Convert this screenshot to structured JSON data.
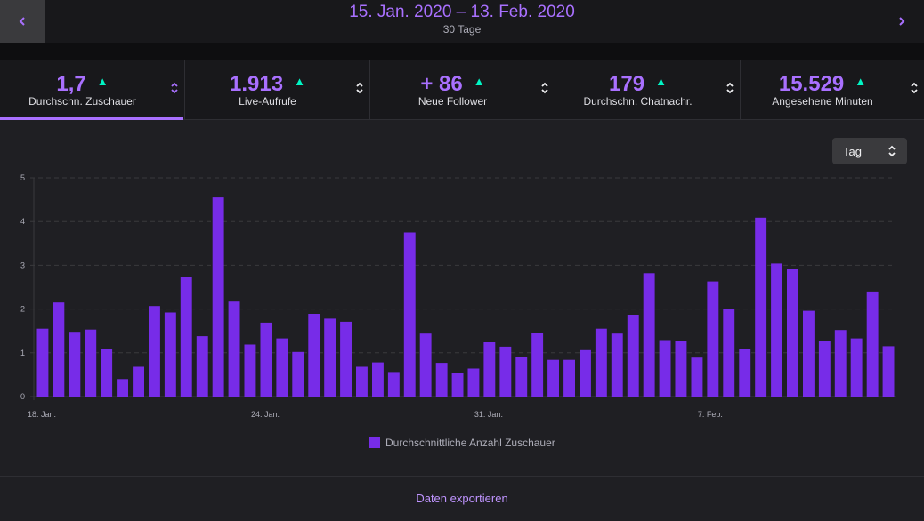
{
  "header": {
    "date_range": "15. Jan. 2020 – 13. Feb. 2020",
    "days": "30 Tage",
    "prev_icon": "chevron-left-icon",
    "next_icon": "chevron-right-icon"
  },
  "stats": [
    {
      "value": "1,7",
      "label": "Durchschn. Zuschauer",
      "trend": "up",
      "active": true
    },
    {
      "value": "1.913",
      "label": "Live-Aufrufe",
      "trend": "up",
      "active": false
    },
    {
      "value": "+ 86",
      "label": "Neue Follower",
      "trend": "up",
      "active": false
    },
    {
      "value": "179",
      "label": "Durchschn. Chatnachr.",
      "trend": "up",
      "active": false
    },
    {
      "value": "15.529",
      "label": "Angesehene Minuten",
      "trend": "up",
      "active": false
    }
  ],
  "period_select": {
    "value": "Tag"
  },
  "colors": {
    "accent": "#a970ff",
    "bar": "#772ce8",
    "trend_up": "#00f5c4"
  },
  "chart_data": {
    "type": "bar",
    "legend_position": "bottom",
    "grid": true,
    "ylim": [
      0,
      5
    ],
    "yticks": [
      "0",
      "1",
      "2",
      "3",
      "4",
      "5"
    ],
    "xtick_labels": [
      {
        "label": "18. Jan.",
        "index": 0
      },
      {
        "label": "24. Jan.",
        "index": 14
      },
      {
        "label": "31. Jan.",
        "index": 28
      },
      {
        "label": "7. Feb.",
        "index": 42
      }
    ],
    "series": [
      {
        "name": "Durchschnittliche Anzahl Zuschauer",
        "values": [
          1.55,
          2.15,
          1.48,
          1.53,
          1.08,
          0.4,
          0.68,
          2.07,
          1.92,
          2.74,
          1.38,
          4.55,
          2.17,
          1.19,
          1.69,
          1.33,
          1.02,
          1.89,
          1.78,
          1.71,
          0.68,
          0.78,
          0.56,
          3.75,
          1.44,
          0.77,
          0.54,
          0.64,
          1.24,
          1.14,
          0.91,
          1.46,
          0.84,
          0.84,
          1.06,
          1.55,
          1.44,
          1.87,
          2.82,
          1.29,
          1.27,
          0.89,
          2.63,
          2.0,
          1.09,
          4.09,
          3.04,
          2.91,
          1.96,
          1.27,
          1.52,
          1.33,
          2.4,
          1.15
        ]
      }
    ]
  },
  "footer": {
    "export_label": "Daten exportieren"
  }
}
